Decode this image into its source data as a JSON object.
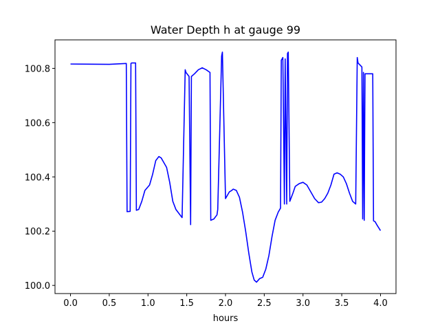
{
  "chart_data": {
    "type": "line",
    "title": "Water Depth h at gauge 99",
    "xlabel": "hours",
    "ylabel": "",
    "xlim": [
      -0.2,
      4.2
    ],
    "ylim": [
      99.97,
      100.905
    ],
    "xticks": [
      0.0,
      0.5,
      1.0,
      1.5,
      2.0,
      2.5,
      3.0,
      3.5,
      4.0
    ],
    "xtick_labels": [
      "0.0",
      "0.5",
      "1.0",
      "1.5",
      "2.0",
      "2.5",
      "3.0",
      "3.5",
      "4.0"
    ],
    "yticks": [
      100.0,
      100.2,
      100.4,
      100.6,
      100.8
    ],
    "ytick_labels": [
      "100.0",
      "100.2",
      "100.4",
      "100.6",
      "100.8"
    ],
    "grid": false,
    "series": [
      {
        "color": "#0000ff",
        "x": [
          0.0,
          0.5,
          0.72,
          0.73,
          0.77,
          0.78,
          0.79,
          0.84,
          0.85,
          0.88,
          0.92,
          0.96,
          1.02,
          1.06,
          1.1,
          1.14,
          1.17,
          1.2,
          1.24,
          1.28,
          1.32,
          1.36,
          1.4,
          1.44,
          1.48,
          1.49,
          1.53,
          1.55,
          1.56,
          1.6,
          1.65,
          1.7,
          1.75,
          1.8,
          1.81,
          1.85,
          1.89,
          1.9,
          1.95,
          1.96,
          2.0,
          2.05,
          2.08,
          2.1,
          2.14,
          2.18,
          2.22,
          2.26,
          2.3,
          2.34,
          2.37,
          2.4,
          2.44,
          2.48,
          2.52,
          2.56,
          2.6,
          2.64,
          2.68,
          2.71,
          2.72,
          2.74,
          2.76,
          2.77,
          2.79,
          2.8,
          2.81,
          2.83,
          2.87,
          2.9,
          2.95,
          3.0,
          3.05,
          3.1,
          3.15,
          3.2,
          3.24,
          3.28,
          3.32,
          3.36,
          3.4,
          3.44,
          3.48,
          3.52,
          3.56,
          3.6,
          3.64,
          3.68,
          3.7,
          3.71,
          3.76,
          3.77,
          3.78,
          3.79,
          3.8,
          3.81,
          3.86,
          3.9,
          3.91,
          3.93,
          3.96,
          4.0
        ],
        "y": [
          100.816,
          100.815,
          100.818,
          100.272,
          100.273,
          100.818,
          100.82,
          100.82,
          100.277,
          100.28,
          100.31,
          100.35,
          100.37,
          100.41,
          100.46,
          100.475,
          100.47,
          100.455,
          100.435,
          100.38,
          100.31,
          100.28,
          100.265,
          100.25,
          100.795,
          100.785,
          100.77,
          100.224,
          100.77,
          100.78,
          100.795,
          100.802,
          100.795,
          100.785,
          100.24,
          100.245,
          100.26,
          100.28,
          100.845,
          100.86,
          100.32,
          100.345,
          100.35,
          100.355,
          100.35,
          100.325,
          100.27,
          100.2,
          100.12,
          100.05,
          100.02,
          100.012,
          100.025,
          100.03,
          100.06,
          100.11,
          100.18,
          100.24,
          100.27,
          100.285,
          100.83,
          100.84,
          100.3,
          100.835,
          100.3,
          100.855,
          100.86,
          100.31,
          100.34,
          100.365,
          100.375,
          100.38,
          100.37,
          100.345,
          100.32,
          100.305,
          100.307,
          100.32,
          100.34,
          100.37,
          100.41,
          100.415,
          100.41,
          100.4,
          100.375,
          100.34,
          100.31,
          100.3,
          100.84,
          100.82,
          100.805,
          100.245,
          100.785,
          100.24,
          100.78,
          100.78,
          100.78,
          100.78,
          100.238,
          100.235,
          100.22,
          100.202
        ]
      }
    ]
  }
}
